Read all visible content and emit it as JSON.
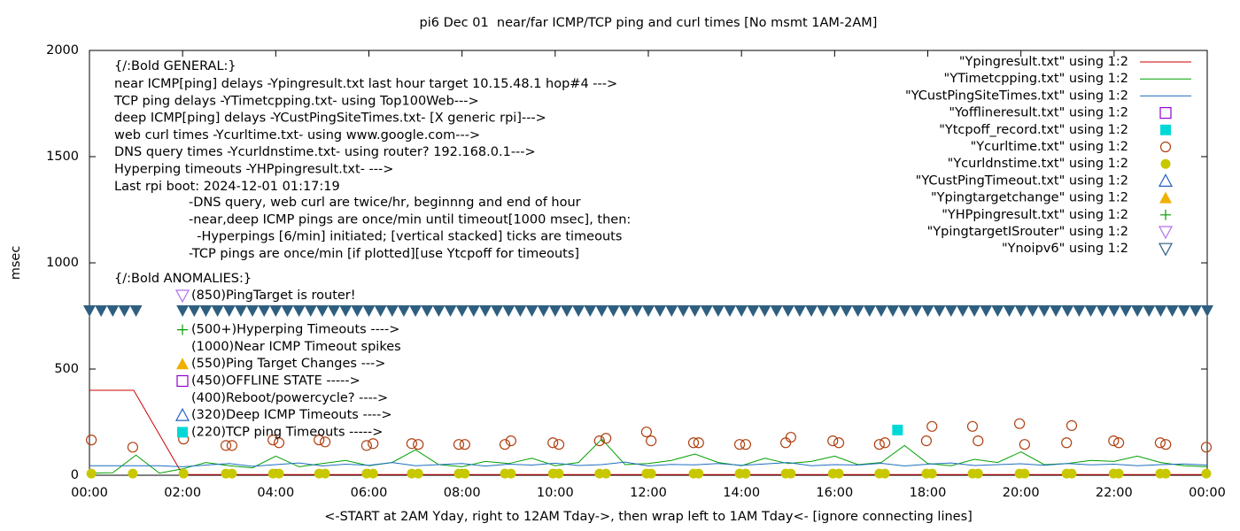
{
  "chart_data": {
    "type": "gnuplot",
    "title": "pi6 Dec 01  near/far ICMP/TCP ping and curl times [No msmt 1AM-2AM]",
    "xlabel": "<-START at 2AM Yday, right to 12AM Tday->, then wrap left to 1AM Tday<- [ignore connecting lines]",
    "ylabel": "msec",
    "xlim": [
      0,
      24
    ],
    "xticks": [
      {
        "value": 0,
        "label": "00:00"
      },
      {
        "value": 2,
        "label": "02:00"
      },
      {
        "value": 4,
        "label": "04:00"
      },
      {
        "value": 6,
        "label": "06:00"
      },
      {
        "value": 8,
        "label": "08:00"
      },
      {
        "value": 10,
        "label": "10:00"
      },
      {
        "value": 12,
        "label": "12:00"
      },
      {
        "value": 14,
        "label": "14:00"
      },
      {
        "value": 16,
        "label": "16:00"
      },
      {
        "value": 18,
        "label": "18:00"
      },
      {
        "value": 20,
        "label": "20:00"
      },
      {
        "value": 22,
        "label": "22:00"
      },
      {
        "value": 24,
        "label": "00:00"
      }
    ],
    "ylim": [
      0,
      2000
    ],
    "yticks": [
      0,
      500,
      1000,
      1500,
      2000
    ],
    "general_title": "{/:Bold GENERAL:}",
    "general_lines": [
      "near ICMP[ping] delays -Ypingresult.txt last hour target 10.15.48.1 hop#4 --->",
      "TCP ping delays -YTimetcpping.txt- using Top100Web--->",
      "deep ICMP[ping] delays -YCustPingSiteTimes.txt- [X generic rpi]--->",
      "web curl times -Ycurltime.txt- using www.google.com--->",
      "DNS query times -Ycurldnstime.txt- using router? 192.168.0.1--->",
      "Hyperping timeouts -YHPpingresult.txt- --->",
      "Last rpi boot: 2024-12-01 01:17:19"
    ],
    "notes": [
      "-DNS query, web curl are twice/hr, beginnng and end of hour",
      "-near,deep ICMP pings are once/min until timeout[1000 msec], then:",
      "  -Hyperpings [6/min] initiated; [vertical stacked] ticks are timeouts",
      "-TCP pings are once/min [if plotted][use Ytcpoff for timeouts]"
    ],
    "anomalies_title": "{/:Bold ANOMALIES:}",
    "anomalies": [
      {
        "text": "(850)PingTarget is router!",
        "marker": "tri-down-open",
        "color": "#b070f0"
      },
      {
        "text": "(500+)Hyperping Timeouts ---->",
        "marker": "plus",
        "color": "#009e00"
      },
      {
        "text": "(1000)Near ICMP Timeout spikes"
      },
      {
        "text": "(550)Ping Target Changes --->",
        "marker": "tri-up-filled",
        "color": "#f0b000"
      },
      {
        "text": "(450)OFFLINE STATE ----->",
        "marker": "square-open",
        "color": "#9400d3"
      },
      {
        "text": "(400)Reboot/powercycle? ---->"
      },
      {
        "text": "(320)Deep ICMP Timeouts ---->",
        "marker": "tri-up-open",
        "color": "#2060c0"
      },
      {
        "text": "(220)TCP ping Timeouts ----->",
        "marker": "square-filled",
        "color": "#00d8d8"
      }
    ],
    "series": [
      {
        "name": "\"Ypingresult.txt\" using 1:2",
        "style": "line",
        "color": "#cc0000",
        "x": [
          0,
          0.95,
          2.0,
          24
        ],
        "values": [
          400,
          400,
          3,
          3
        ]
      },
      {
        "name": "\"YTimetcpping.txt\" using 1:2",
        "style": "line",
        "color": "#00a000",
        "x": [
          0,
          0.5,
          1,
          1.5,
          2,
          2.5,
          3,
          3.5,
          4,
          4.5,
          5,
          5.5,
          6,
          6.5,
          7,
          7.5,
          8,
          8.5,
          9,
          9.5,
          10,
          10.5,
          11,
          11.5,
          12,
          12.5,
          13,
          13.5,
          14,
          14.5,
          15,
          15.5,
          16,
          16.5,
          17,
          17.5,
          18,
          18.5,
          19,
          19.5,
          20,
          20.5,
          21,
          21.5,
          22,
          22.5,
          23,
          23.5,
          24
        ],
        "values": [
          10,
          12,
          95,
          10,
          30,
          60,
          45,
          35,
          90,
          40,
          55,
          70,
          45,
          60,
          120,
          50,
          40,
          65,
          55,
          80,
          45,
          60,
          170,
          50,
          55,
          70,
          100,
          60,
          45,
          80,
          55,
          65,
          90,
          50,
          60,
          140,
          55,
          45,
          75,
          60,
          110,
          50,
          55,
          70,
          65,
          90,
          60,
          45,
          40
        ]
      },
      {
        "name": "\"YCustPingSiteTimes.txt\" using 1:2",
        "style": "line",
        "color": "#1f6fc0",
        "x": [
          0,
          0.5,
          1,
          1.5,
          2,
          2.5,
          3,
          3.5,
          4,
          4.5,
          5,
          5.5,
          6,
          6.5,
          7,
          7.5,
          8,
          8.5,
          9,
          9.5,
          10,
          10.5,
          11,
          11.5,
          12,
          12.5,
          13,
          13.5,
          14,
          14.5,
          15,
          15.5,
          16,
          16.5,
          17,
          17.5,
          18,
          18.5,
          19,
          19.5,
          20,
          20.5,
          21,
          21.5,
          22,
          22.5,
          23,
          23.5,
          24
        ],
        "values": [
          45,
          45,
          45,
          45,
          40,
          48,
          55,
          42,
          50,
          58,
          44,
          52,
          47,
          60,
          45,
          50,
          55,
          43,
          52,
          48,
          57,
          46,
          50,
          62,
          44,
          51,
          49,
          55,
          47,
          53,
          60,
          45,
          50,
          48,
          56,
          44,
          52,
          58,
          46,
          50,
          54,
          47,
          55,
          49,
          52,
          45,
          50,
          53,
          48
        ]
      },
      {
        "name": "\"Yofflineresult.txt\" using 1:2",
        "marker": "square-open",
        "color": "#9400d3",
        "x": [],
        "values": []
      },
      {
        "name": "\"Ytcpoff_record.txt\" using 1:2",
        "marker": "square-filled",
        "color": "#00d8d8",
        "x": [
          17.35
        ],
        "values": [
          213
        ]
      },
      {
        "name": "\"Ycurltime.txt\" using 1:2",
        "marker": "circle-open",
        "color": "#b04010",
        "x": [
          0.04,
          0.93,
          2.02,
          2.93,
          3.06,
          3.94,
          4.07,
          4.93,
          5.06,
          5.95,
          6.09,
          6.92,
          7.06,
          7.93,
          8.06,
          8.92,
          9.05,
          9.95,
          10.08,
          10.95,
          11.09,
          11.96,
          12.06,
          12.97,
          13.08,
          13.96,
          14.09,
          14.95,
          15.06,
          15.96,
          16.09,
          16.96,
          17.08,
          17.97,
          18.09,
          18.96,
          19.08,
          19.97,
          20.08,
          20.98,
          21.09,
          21.99,
          22.1,
          22.99,
          23.11,
          23.98
        ],
        "values": [
          166,
          132,
          170,
          140,
          140,
          166,
          153,
          166,
          157,
          140,
          149,
          149,
          145,
          145,
          145,
          145,
          162,
          153,
          145,
          162,
          174,
          204,
          162,
          153,
          153,
          145,
          145,
          153,
          179,
          162,
          153,
          145,
          153,
          162,
          230,
          230,
          162,
          243,
          145,
          153,
          234,
          162,
          153,
          153,
          145,
          132
        ]
      },
      {
        "name": "\"Ycurldnstime.txt\" using 1:2",
        "marker": "circle-filled",
        "color": "#c8c800",
        "x": [
          0.04,
          0.93,
          2.02,
          2.93,
          3.06,
          3.94,
          4.07,
          4.93,
          5.06,
          5.95,
          6.09,
          6.92,
          7.06,
          7.93,
          8.06,
          8.92,
          9.05,
          9.95,
          10.08,
          10.95,
          11.09,
          11.96,
          12.06,
          12.97,
          13.08,
          13.96,
          14.09,
          14.95,
          15.06,
          15.96,
          16.09,
          16.96,
          17.08,
          17.97,
          18.09,
          18.96,
          19.08,
          19.97,
          20.08,
          20.98,
          21.09,
          21.99,
          22.1,
          22.99,
          23.11,
          23.98
        ],
        "values": [
          8,
          8,
          8,
          8,
          8,
          8,
          8,
          8,
          8,
          8,
          8,
          8,
          8,
          8,
          8,
          8,
          8,
          8,
          8,
          8,
          8,
          8,
          8,
          8,
          8,
          8,
          8,
          8,
          8,
          8,
          8,
          8,
          8,
          8,
          8,
          8,
          8,
          8,
          8,
          8,
          8,
          8,
          8,
          8,
          8,
          8
        ]
      },
      {
        "name": "\"YCustPingTimeout.txt\" using 1:2",
        "marker": "tri-up-open",
        "color": "#2060c0",
        "x": [],
        "values": []
      },
      {
        "name": "\"Ypingtargetchange\" using 1:2",
        "marker": "tri-up-filled",
        "color": "#f0b000",
        "x": [],
        "values": []
      },
      {
        "name": "\"YHPpingresult.txt\" using 1:2",
        "marker": "plus",
        "color": "#009e00",
        "x": [],
        "values": []
      },
      {
        "name": "\"YpingtargetISrouter\" using 1:2",
        "marker": "tri-down-open",
        "color": "#b070f0",
        "x": [],
        "values": []
      },
      {
        "name": "\"Ynoipv6\" using 1:2",
        "marker": "tri-down-filled",
        "color": "#2e5f80",
        "legend_marker": "tri-down-open",
        "x": [
          0,
          0.25,
          0.5,
          0.75,
          1,
          2,
          2.25,
          2.5,
          2.75,
          3,
          3.25,
          3.5,
          3.75,
          4,
          4.25,
          4.5,
          4.75,
          5,
          5.25,
          5.5,
          5.75,
          6,
          6.25,
          6.5,
          6.75,
          7,
          7.25,
          7.5,
          7.75,
          8,
          8.25,
          8.5,
          8.75,
          9,
          9.25,
          9.5,
          9.75,
          10,
          10.25,
          10.5,
          10.75,
          11,
          11.25,
          11.5,
          11.75,
          12,
          12.25,
          12.5,
          12.75,
          13,
          13.25,
          13.5,
          13.75,
          14,
          14.25,
          14.5,
          14.75,
          15,
          15.25,
          15.5,
          15.75,
          16,
          16.25,
          16.5,
          16.75,
          17,
          17.25,
          17.5,
          17.75,
          18,
          18.25,
          18.5,
          18.75,
          19,
          19.25,
          19.5,
          19.75,
          20,
          20.25,
          20.5,
          20.75,
          21,
          21.25,
          21.5,
          21.75,
          22,
          22.25,
          22.5,
          22.75,
          23,
          23.25,
          23.5,
          23.75,
          24
        ],
        "values": [
          775,
          775,
          775,
          775,
          775,
          775,
          775,
          775,
          775,
          775,
          775,
          775,
          775,
          775,
          775,
          775,
          775,
          775,
          775,
          775,
          775,
          775,
          775,
          775,
          775,
          775,
          775,
          775,
          775,
          775,
          775,
          775,
          775,
          775,
          775,
          775,
          775,
          775,
          775,
          775,
          775,
          775,
          775,
          775,
          775,
          775,
          775,
          775,
          775,
          775,
          775,
          775,
          775,
          775,
          775,
          775,
          775,
          775,
          775,
          775,
          775,
          775,
          775,
          775,
          775,
          775,
          775,
          775,
          775,
          775,
          775,
          775,
          775,
          775,
          775,
          775,
          775,
          775,
          775,
          775,
          775,
          775,
          775,
          775,
          775,
          775,
          775,
          775,
          775,
          775,
          775,
          775,
          775,
          775
        ]
      }
    ]
  }
}
